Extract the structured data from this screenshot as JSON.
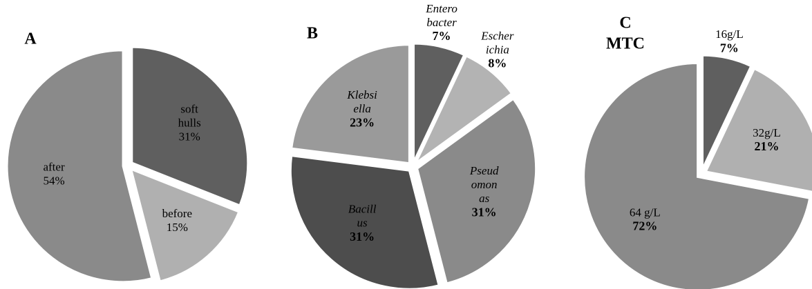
{
  "chart_data": [
    {
      "type": "pie",
      "title": [
        "A"
      ],
      "categories": [
        [
          "soft",
          "hulls"
        ],
        [
          "before"
        ],
        [
          "after"
        ]
      ],
      "values": [
        31,
        15,
        54
      ],
      "value_labels": [
        "31%",
        "15%",
        "54%"
      ],
      "colors": [
        "#5f5f5f",
        "#b0b0b0",
        "#8a8a8a"
      ]
    },
    {
      "type": "pie",
      "title": [
        "B"
      ],
      "categories": [
        [
          "Entero",
          "bacter"
        ],
        [
          "Escher",
          "ichia"
        ],
        [
          "Pseud",
          "omon",
          "as"
        ],
        [
          "Bacill",
          "us"
        ],
        [
          "Klebsi",
          "ella"
        ]
      ],
      "values": [
        7,
        8,
        31,
        31,
        23
      ],
      "value_labels": [
        "7%",
        "8%",
        "31%",
        "31%",
        "23%"
      ],
      "colors": [
        "#5f5f5f",
        "#b3b3b3",
        "#8a8a8a",
        "#4d4d4d",
        "#9a9a9a"
      ]
    },
    {
      "type": "pie",
      "title": [
        "C",
        "MTC"
      ],
      "categories": [
        [
          "16g/L"
        ],
        [
          "32g/L"
        ],
        [
          "64 g/L"
        ]
      ],
      "values": [
        7,
        21,
        72
      ],
      "value_labels": [
        "7%",
        "21%",
        "72%"
      ],
      "colors": [
        "#5f5f5f",
        "#b0b0b0",
        "#8a8a8a"
      ]
    }
  ]
}
